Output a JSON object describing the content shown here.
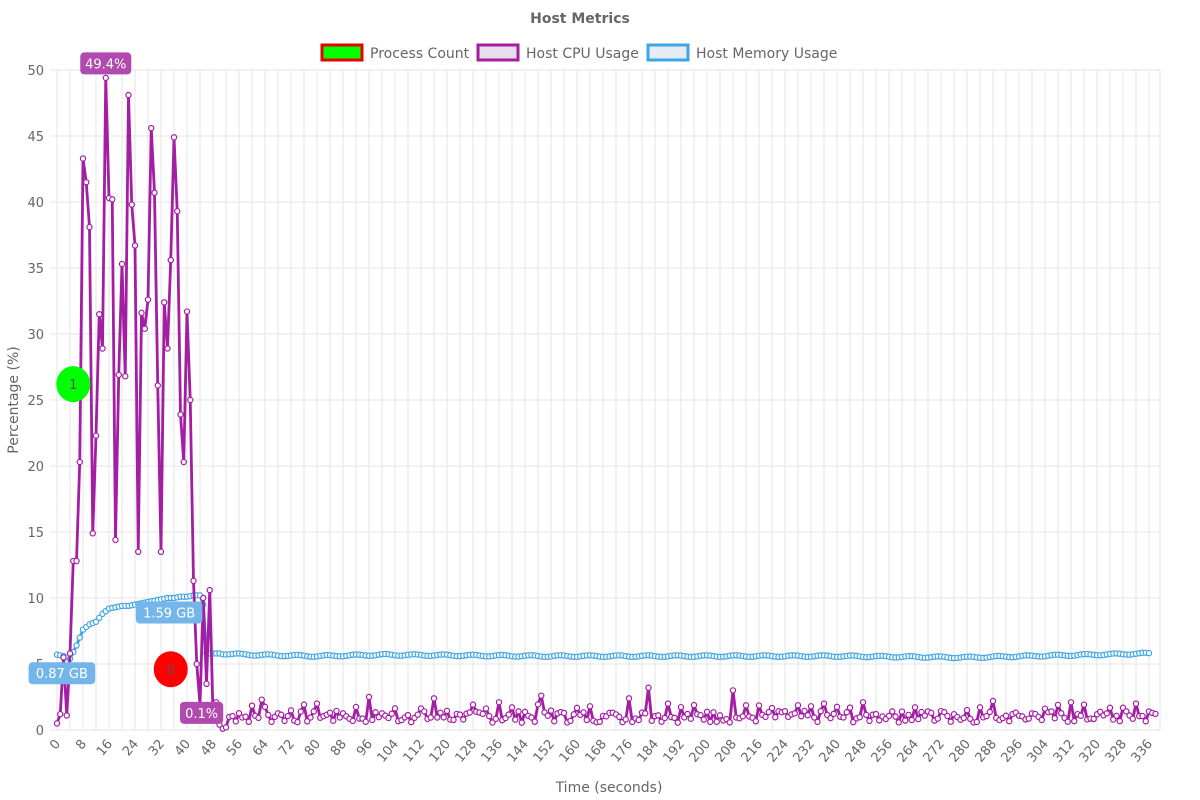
{
  "colors": {
    "cpu": "#a31ea3",
    "cpu_badge": "#b04aae",
    "memory": "#3ea6e4",
    "memory_badge": "#74b6ea",
    "process_running": "#00ff00",
    "process_stopped": "#ff0000",
    "legend_process_fill": "#00ff00",
    "legend_process_border": "#e60000",
    "legend_cpu_fill": "#e7e0ea",
    "legend_memory_fill": "#e4edf4"
  },
  "chart_data": {
    "type": "line",
    "title": "Host Metrics",
    "xlabel": "Time (seconds)",
    "ylabel": "Percentage (%)",
    "ylim": [
      0,
      50
    ],
    "xlim": [
      -1,
      340
    ],
    "yticks": [
      0,
      5,
      10,
      15,
      20,
      25,
      30,
      35,
      40,
      45,
      50
    ],
    "xtick_step": 8,
    "xtick_max": 336,
    "grid": true,
    "legend": {
      "placement": "top",
      "entries": [
        "Process Count",
        "Host CPU Usage",
        "Host Memory Usage"
      ]
    },
    "series": [
      {
        "name": "Host CPU Usage",
        "x": [
          0,
          1,
          2,
          3,
          4,
          5,
          6,
          7,
          8,
          9,
          10,
          11,
          12,
          13,
          14,
          15,
          16,
          17,
          18,
          19,
          20,
          21,
          22,
          23,
          24,
          25,
          26,
          27,
          28,
          29,
          30,
          31,
          32,
          33,
          34,
          35,
          36,
          37,
          38,
          39,
          40,
          41,
          42,
          43,
          44,
          45,
          46,
          47,
          48,
          49,
          50,
          51,
          52
        ],
        "values": [
          0.5,
          1.2,
          5.5,
          1.1,
          5.8,
          12.8,
          12.8,
          20.3,
          43.3,
          41.5,
          38.1,
          14.9,
          22.3,
          31.5,
          28.9,
          49.4,
          40.3,
          40.2,
          14.4,
          26.9,
          35.3,
          26.8,
          48.1,
          39.8,
          36.7,
          13.5,
          31.6,
          30.4,
          32.6,
          45.6,
          40.7,
          26.1,
          13.5,
          32.4,
          28.9,
          35.6,
          44.9,
          39.3,
          23.9,
          20.3,
          31.7,
          25.0,
          11.3,
          5.0,
          1.9,
          10.0,
          3.5,
          10.6,
          1.2,
          2.1,
          0.4,
          0.1,
          0.2
        ],
        "tail_baseline": 1.0,
        "tail_spikes": [
          [
            63,
            2.3
          ],
          [
            80,
            2.0
          ],
          [
            96,
            2.5
          ],
          [
            116,
            2.4
          ],
          [
            136,
            2.1
          ],
          [
            149,
            2.6
          ],
          [
            176,
            2.4
          ],
          [
            182,
            3.2
          ],
          [
            188,
            2.0
          ],
          [
            208,
            3.0
          ],
          [
            236,
            2.0
          ],
          [
            248,
            2.1
          ],
          [
            288,
            2.2
          ],
          [
            312,
            2.1
          ],
          [
            332,
            2.0
          ]
        ]
      },
      {
        "name": "Host Memory Usage",
        "x": [
          0,
          2,
          4,
          6,
          8,
          10,
          12,
          14,
          16,
          18,
          20,
          22,
          24,
          26,
          28,
          30,
          32,
          34,
          36,
          38,
          40,
          42,
          44,
          45,
          46,
          48,
          50,
          60,
          80,
          100,
          150,
          200,
          240,
          280,
          336
        ],
        "values": [
          5.7,
          5.6,
          5.4,
          6.4,
          7.6,
          8.0,
          8.2,
          8.8,
          9.2,
          9.3,
          9.4,
          9.4,
          9.5,
          9.6,
          9.7,
          9.8,
          9.9,
          10.0,
          10.0,
          10.1,
          10.1,
          10.2,
          10.2,
          9.5,
          5.8,
          5.8,
          5.8,
          5.7,
          5.6,
          5.7,
          5.6,
          5.6,
          5.6,
          5.5,
          5.8
        ]
      },
      {
        "name": "Process Count",
        "points": [
          {
            "x": 5,
            "y": 26.2,
            "value": "1",
            "state": "running"
          },
          {
            "x": 35,
            "y": 4.6,
            "value": "0",
            "state": "stopped"
          }
        ]
      }
    ],
    "annotations": [
      {
        "series": "Host CPU Usage",
        "x": 15,
        "y": 50.5,
        "label": "49.4%"
      },
      {
        "series": "Host CPU Usage",
        "x": 44.5,
        "y": 1.3,
        "label": "0.1%"
      },
      {
        "series": "Host Memory Usage",
        "x": 34.5,
        "y": 8.9,
        "label": "1.59 GB"
      },
      {
        "series": "Host Memory Usage",
        "x": 1.5,
        "y": 4.3,
        "label": "0.87 GB"
      }
    ]
  }
}
